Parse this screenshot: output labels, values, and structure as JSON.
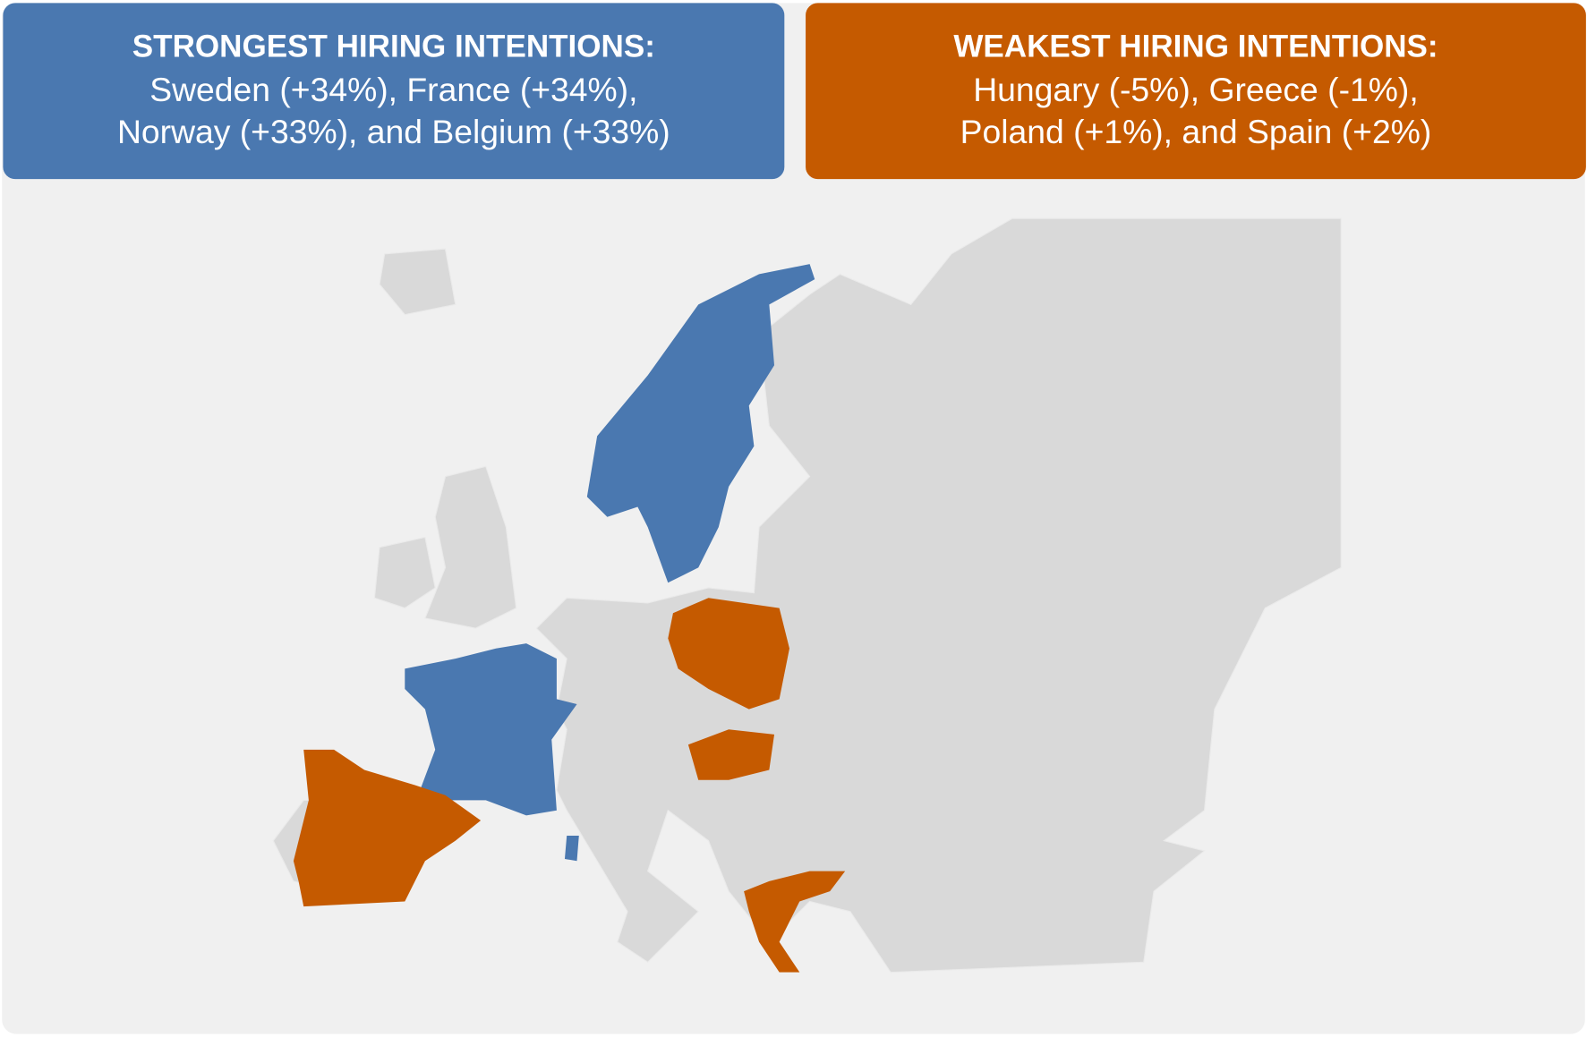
{
  "panels": [
    {
      "title": "STRONGEST HIRING INTENTIONS:",
      "lines": [
        "Sweden (+34%), France (+34%),",
        "Norway (+33%), and Belgium (+33%)"
      ],
      "color": "#4a78b0"
    },
    {
      "title": "WEAKEST HIRING INTENTIONS:",
      "lines": [
        "Hungary (-5%), Greece (-1%),",
        "Poland (+1%), and Spain (+2%)"
      ],
      "color": "#c55a00"
    }
  ]
}
